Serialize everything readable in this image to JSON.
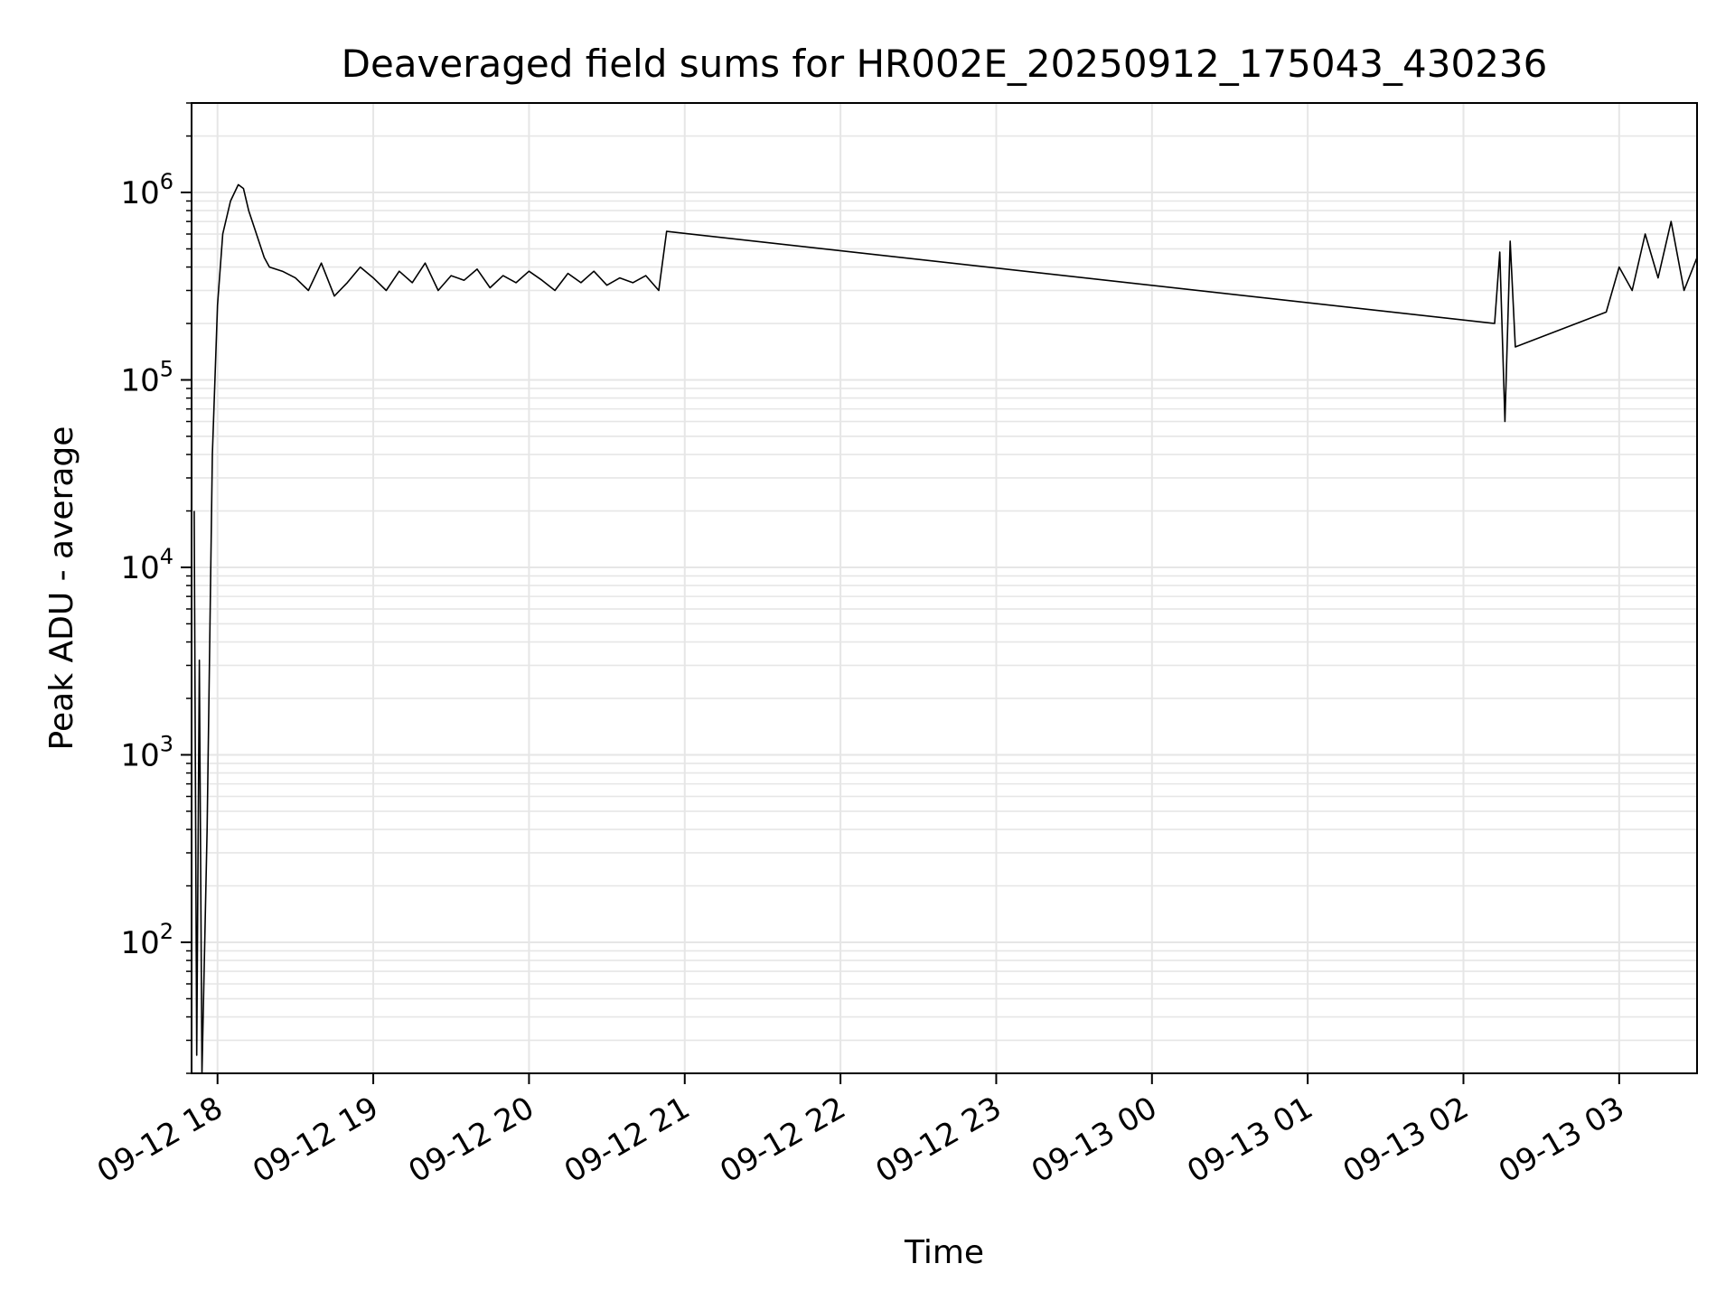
{
  "chart_data": {
    "type": "line",
    "title": "Deaveraged field sums for HR002E_20250912_175043_430236",
    "xlabel": "Time",
    "ylabel": "Peak ADU - average",
    "yscale": "log",
    "ylim": [
      20,
      3000000
    ],
    "xlim": [
      "2025-09-12 17:50",
      "2025-09-13 03:30"
    ],
    "grid": true,
    "colors": {
      "line": "#000000",
      "grid": "#e6e6e6",
      "axes": "#000000"
    },
    "x_ticks": [
      {
        "time": "2025-09-12 18:00",
        "label": "09-12 18"
      },
      {
        "time": "2025-09-12 19:00",
        "label": "09-12 19"
      },
      {
        "time": "2025-09-12 20:00",
        "label": "09-12 20"
      },
      {
        "time": "2025-09-12 21:00",
        "label": "09-12 21"
      },
      {
        "time": "2025-09-12 22:00",
        "label": "09-12 22"
      },
      {
        "time": "2025-09-12 23:00",
        "label": "09-12 23"
      },
      {
        "time": "2025-09-13 00:00",
        "label": "09-13 00"
      },
      {
        "time": "2025-09-13 01:00",
        "label": "09-13 01"
      },
      {
        "time": "2025-09-13 02:00",
        "label": "09-13 02"
      },
      {
        "time": "2025-09-13 03:00",
        "label": "09-13 03"
      }
    ],
    "y_ticks": [
      {
        "value": 100,
        "base": "10",
        "exp": "2"
      },
      {
        "value": 1000,
        "base": "10",
        "exp": "3"
      },
      {
        "value": 10000,
        "base": "10",
        "exp": "4"
      },
      {
        "value": 100000,
        "base": "10",
        "exp": "5"
      },
      {
        "value": 1000000,
        "base": "10",
        "exp": "6"
      }
    ],
    "series": [
      {
        "x": [
          "2025-09-12 17:51",
          "2025-09-12 17:52",
          "2025-09-12 17:53",
          "2025-09-12 17:54",
          "2025-09-12 17:56",
          "2025-09-12 17:58",
          "2025-09-12 18:00",
          "2025-09-12 18:02",
          "2025-09-12 18:05",
          "2025-09-12 18:08",
          "2025-09-12 18:10",
          "2025-09-12 18:12",
          "2025-09-12 18:15",
          "2025-09-12 18:18",
          "2025-09-12 18:20",
          "2025-09-12 18:25",
          "2025-09-12 18:30",
          "2025-09-12 18:35",
          "2025-09-12 18:40",
          "2025-09-12 18:45",
          "2025-09-12 18:50",
          "2025-09-12 18:55",
          "2025-09-12 19:00",
          "2025-09-12 19:05",
          "2025-09-12 19:10",
          "2025-09-12 19:15",
          "2025-09-12 19:20",
          "2025-09-12 19:25",
          "2025-09-12 19:30",
          "2025-09-12 19:35",
          "2025-09-12 19:40",
          "2025-09-12 19:45",
          "2025-09-12 19:50",
          "2025-09-12 19:55",
          "2025-09-12 20:00",
          "2025-09-12 20:05",
          "2025-09-12 20:10",
          "2025-09-12 20:15",
          "2025-09-12 20:20",
          "2025-09-12 20:25",
          "2025-09-12 20:30",
          "2025-09-12 20:35",
          "2025-09-12 20:40",
          "2025-09-12 20:45",
          "2025-09-12 20:50",
          "2025-09-12 20:53",
          "2025-09-13 02:12",
          "2025-09-13 02:14",
          "2025-09-13 02:16",
          "2025-09-13 02:18",
          "2025-09-13 02:20",
          "2025-09-13 02:55",
          "2025-09-13 03:00",
          "2025-09-13 03:05",
          "2025-09-13 03:10",
          "2025-09-13 03:15",
          "2025-09-13 03:20",
          "2025-09-13 03:25",
          "2025-09-13 03:30"
        ],
        "y": [
          20000,
          25,
          3200,
          20,
          400,
          40000,
          250000,
          600000,
          900000,
          1100000,
          1050000,
          800000,
          600000,
          450000,
          400000,
          380000,
          350000,
          300000,
          420000,
          280000,
          330000,
          400000,
          350000,
          300000,
          380000,
          330000,
          420000,
          300000,
          360000,
          340000,
          390000,
          310000,
          360000,
          330000,
          380000,
          340000,
          300000,
          370000,
          330000,
          380000,
          320000,
          350000,
          330000,
          360000,
          300000,
          620000,
          200000,
          480000,
          60000,
          550000,
          150000,
          230000,
          400000,
          300000,
          600000,
          350000,
          700000,
          300000,
          450000
        ]
      }
    ]
  }
}
